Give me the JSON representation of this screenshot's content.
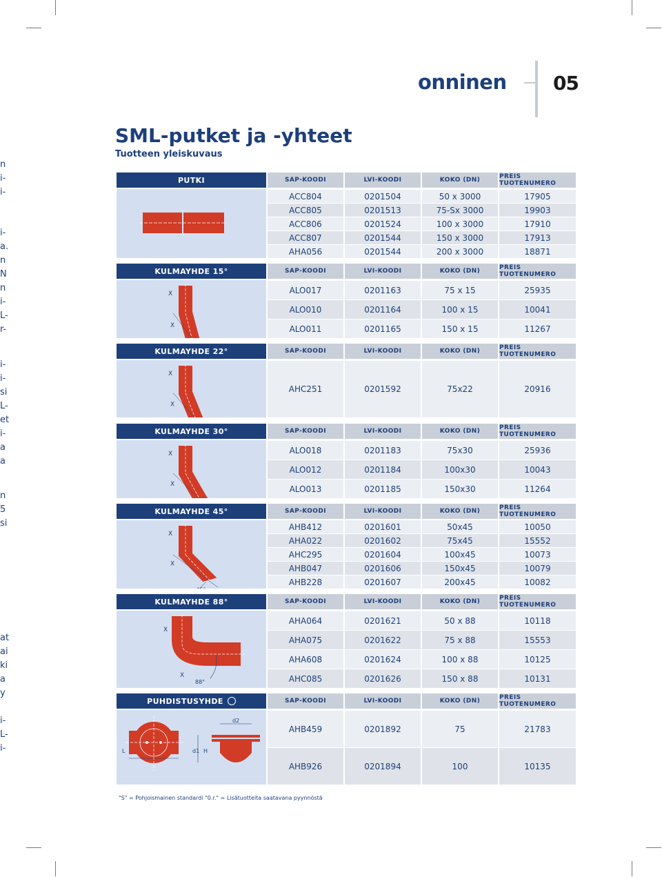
{
  "header": {
    "brand": "onninen",
    "chapter": "05"
  },
  "page": {
    "title": "SML-putket ja -yhteet",
    "subtitle": "Tuotteen yleiskuvaus"
  },
  "columns": [
    "SAP-KOODI",
    "LVI-KOODI",
    "KOKO (DN)",
    "PREIS TUOTENUMERO"
  ],
  "sections": [
    {
      "name": "PUTKI",
      "labels": [],
      "rows": [
        [
          "ACC804",
          "0201504",
          "50 x 3000",
          "17905"
        ],
        [
          "ACC805",
          "0201513",
          "75-Sx 3000",
          "19903"
        ],
        [
          "ACC806",
          "0201524",
          "100 x 3000",
          "17910"
        ],
        [
          "ACC807",
          "0201544",
          "150 x 3000",
          "17913"
        ],
        [
          "AHA056",
          "0201544",
          "200 x 3000",
          "18871"
        ]
      ]
    },
    {
      "name": "KULMAYHDE 15°",
      "labels": [
        "X",
        "X",
        "15°"
      ],
      "rows": [
        [
          "ALO017",
          "0201163",
          "75 x 15",
          "25935"
        ],
        [
          "ALO010",
          "0201164",
          "100 x 15",
          "10041"
        ],
        [
          "ALO011",
          "0201165",
          "150 x 15",
          "11267"
        ]
      ]
    },
    {
      "name": "KULMAYHDE 22°",
      "labels": [
        "X",
        "X",
        "22°"
      ],
      "rows": [
        [
          "AHC251",
          "0201592",
          "75x22",
          "20916"
        ]
      ]
    },
    {
      "name": "KULMAYHDE 30°",
      "labels": [
        "X",
        "X",
        "30°"
      ],
      "rows": [
        [
          "ALO018",
          "0201183",
          "75x30",
          "25936"
        ],
        [
          "ALO012",
          "0201184",
          "100x30",
          "10043"
        ],
        [
          "ALO013",
          "0201185",
          "150x30",
          "11264"
        ]
      ]
    },
    {
      "name": "KULMAYHDE 45°",
      "labels": [
        "X",
        "X",
        "45°"
      ],
      "rows": [
        [
          "AHB412",
          "0201601",
          "50x45",
          "10050"
        ],
        [
          "AHA022",
          "0201602",
          "75x45",
          "15552"
        ],
        [
          "AHC295",
          "0201604",
          "100x45",
          "10073"
        ],
        [
          "AHB047",
          "0201606",
          "150x45",
          "10079"
        ],
        [
          "AHB228",
          "0201607",
          "200x45",
          "10082"
        ]
      ]
    },
    {
      "name": "KULMAYHDE 88°",
      "labels": [
        "X",
        "X",
        "88°"
      ],
      "rows": [
        [
          "AHA064",
          "0201621",
          "50 x 88",
          "10118"
        ],
        [
          "AHA075",
          "0201622",
          "75 x 88",
          "15553"
        ],
        [
          "AHA608",
          "0201624",
          "100 x 88",
          "10125"
        ],
        [
          "AHC085",
          "0201626",
          "150 x 88",
          "10131"
        ]
      ]
    },
    {
      "name": "PUHDISTUSYHDE",
      "labels": [
        "L",
        "d1",
        "H",
        "d2"
      ],
      "rows": [
        [
          "AHB459",
          "0201892",
          "75",
          "21783"
        ],
        [
          "AHB926",
          "0201894",
          "100",
          "10135"
        ]
      ]
    }
  ],
  "footnote": "\"S\" = Pohjoismainen standardi \"0.r.\" = Lisätuotteita saatavana pyynnöstä",
  "side_text": [
    "n",
    "i-",
    "i-",
    "i-",
    "a.",
    "n",
    "N",
    "n",
    "i-",
    "L-",
    "r-",
    "i-",
    "i-",
    "si",
    "L-",
    "et",
    "i-",
    "a",
    "a",
    "n",
    "5",
    "si",
    "at",
    "ai",
    "ki",
    "a",
    "y",
    "i-",
    "L-",
    "i-"
  ],
  "colors": {
    "navy": "#1d3f7a",
    "pipe_red": "#d23b26",
    "header_grey": "#c9cfd9",
    "image_bg": "#d3dff0",
    "row_light": "#ebeef2",
    "row_dark": "#dfe3e9"
  }
}
